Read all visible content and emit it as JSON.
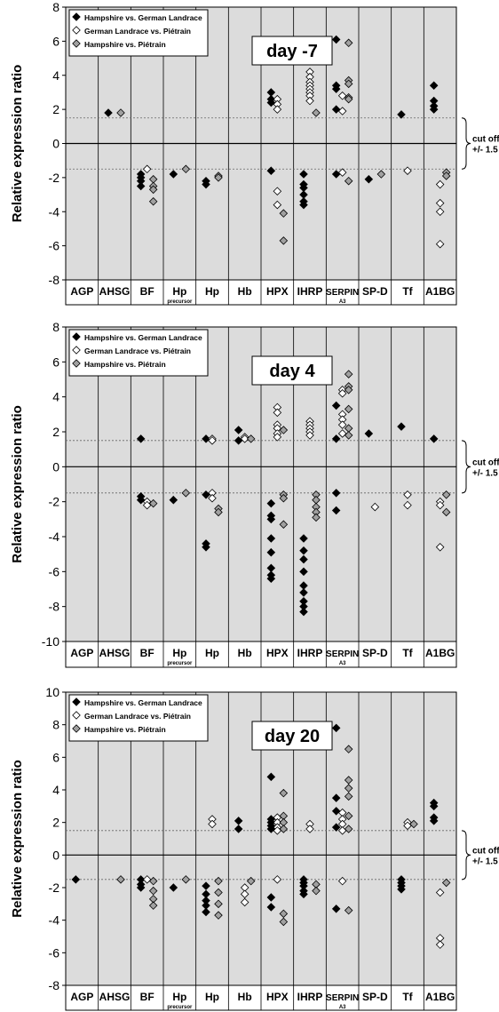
{
  "legend": {
    "items": [
      {
        "label": "Hampshire vs. German Landrace",
        "marker": "black-diamond"
      },
      {
        "label": "German Landrace vs. Piétrain",
        "marker": "white-diamond"
      },
      {
        "label": "Hampshire vs. Piétrain",
        "marker": "gray-diamond"
      }
    ]
  },
  "cutoff_note": {
    "line1": "cut off",
    "line2": "+/- 1.5"
  },
  "colors": {
    "plot_background": "#dcdcdc",
    "black_marker": "#000000",
    "white_marker": "#ffffff",
    "gray_marker": "#a0a0a0",
    "cutoff_line": "#666666"
  },
  "chart_data": [
    {
      "type": "scatter",
      "title": "day -7",
      "ylabel": "Relative expression ratio",
      "ylim": [
        -8,
        8
      ],
      "yticks": [
        -8,
        -6,
        -4,
        -2,
        0,
        2,
        4,
        6,
        8
      ],
      "cutoff": 1.5,
      "categories": [
        "AGP",
        "AHSG",
        "BF",
        "Hp (precursor)",
        "Hp",
        "Hb",
        "HPX",
        "IHRP",
        "SERPIN A3",
        "SP-D",
        "Tf",
        "A1BG"
      ],
      "series": [
        {
          "name": "Hampshire vs. German Landrace",
          "marker": "black-diamond",
          "points": [
            {
              "cat": "AHSG",
              "values": [
                1.8
              ]
            },
            {
              "cat": "BF",
              "values": [
                -1.8,
                -2.0,
                -2.2,
                -2.5
              ]
            },
            {
              "cat": "Hp (precursor)",
              "values": [
                -1.8
              ]
            },
            {
              "cat": "Hp",
              "values": [
                -2.2,
                -2.4
              ]
            },
            {
              "cat": "HPX",
              "values": [
                3.0,
                2.6,
                2.4,
                -1.6
              ]
            },
            {
              "cat": "IHRP",
              "values": [
                -1.8,
                -2.4,
                -2.6,
                -3.0,
                -3.4,
                -3.6
              ]
            },
            {
              "cat": "SERPIN A3",
              "values": [
                6.1,
                3.4,
                3.2,
                2.0,
                -1.8
              ]
            },
            {
              "cat": "SP-D",
              "values": [
                -2.1
              ]
            },
            {
              "cat": "Tf",
              "values": [
                1.7
              ]
            },
            {
              "cat": "A1BG",
              "values": [
                3.4,
                2.5,
                2.2,
                2.0
              ]
            }
          ]
        },
        {
          "name": "German Landrace vs. Piétrain",
          "marker": "white-diamond",
          "points": [
            {
              "cat": "BF",
              "values": [
                -1.5
              ]
            },
            {
              "cat": "HPX",
              "values": [
                2.6,
                2.3,
                2.0,
                -2.8,
                -3.6
              ]
            },
            {
              "cat": "IHRP",
              "values": [
                4.2,
                3.9,
                3.6,
                3.4,
                3.2,
                3.0,
                2.8,
                2.5
              ]
            },
            {
              "cat": "SERPIN A3",
              "values": [
                2.8,
                1.9,
                -1.7
              ]
            },
            {
              "cat": "Tf",
              "values": [
                -1.6
              ]
            },
            {
              "cat": "A1BG",
              "values": [
                -2.4,
                -3.5,
                -4.0,
                -5.9
              ]
            }
          ]
        },
        {
          "name": "Hampshire vs. Piétrain",
          "marker": "gray-diamond",
          "points": [
            {
              "cat": "AHSG",
              "values": [
                1.8
              ]
            },
            {
              "cat": "BF",
              "values": [
                -2.1,
                -2.5,
                -2.7,
                -3.4
              ]
            },
            {
              "cat": "Hp (precursor)",
              "values": [
                -1.5
              ]
            },
            {
              "cat": "Hp",
              "values": [
                -1.9,
                -2.0
              ]
            },
            {
              "cat": "HPX",
              "values": [
                -4.1,
                -5.7
              ]
            },
            {
              "cat": "IHRP",
              "values": [
                1.8
              ]
            },
            {
              "cat": "SERPIN A3",
              "values": [
                5.9,
                3.7,
                3.5,
                2.7,
                2.6,
                -2.2
              ]
            },
            {
              "cat": "SP-D",
              "values": [
                -1.8
              ]
            },
            {
              "cat": "A1BG",
              "values": [
                -1.7,
                -1.9
              ]
            }
          ]
        }
      ]
    },
    {
      "type": "scatter",
      "title": "day 4",
      "ylabel": "Relative expression ratio",
      "ylim": [
        -10,
        8
      ],
      "yticks": [
        -10,
        -8,
        -6,
        -4,
        -2,
        0,
        2,
        4,
        6,
        8
      ],
      "cutoff": 1.5,
      "categories": [
        "AGP",
        "AHSG",
        "BF",
        "Hp (precursor)",
        "Hp",
        "Hb",
        "HPX",
        "IHRP",
        "SERPIN A3",
        "SP-D",
        "Tf",
        "A1BG"
      ],
      "series": [
        {
          "name": "Hampshire vs. German Landrace",
          "marker": "black-diamond",
          "points": [
            {
              "cat": "BF",
              "values": [
                1.6,
                -1.7,
                -1.9
              ]
            },
            {
              "cat": "Hp (precursor)",
              "values": [
                -1.9
              ]
            },
            {
              "cat": "Hp",
              "values": [
                1.6,
                -1.6,
                -4.4,
                -4.6
              ]
            },
            {
              "cat": "Hb",
              "values": [
                2.1,
                1.5
              ]
            },
            {
              "cat": "HPX",
              "values": [
                -2.1,
                -2.8,
                -3.0,
                -4.1,
                -4.9,
                -5.8,
                -6.2,
                -6.4
              ]
            },
            {
              "cat": "IHRP",
              "values": [
                -4.1,
                -4.8,
                -5.3,
                -6.0,
                -6.8,
                -7.2,
                -7.7,
                -8.0,
                -8.3
              ]
            },
            {
              "cat": "SERPIN A3",
              "values": [
                3.5,
                1.6,
                -1.5,
                -2.5
              ]
            },
            {
              "cat": "SP-D",
              "values": [
                1.9
              ]
            },
            {
              "cat": "Tf",
              "values": [
                2.3
              ]
            },
            {
              "cat": "A1BG",
              "values": [
                1.6
              ]
            }
          ]
        },
        {
          "name": "German Landrace vs. Piétrain",
          "marker": "white-diamond",
          "points": [
            {
              "cat": "BF",
              "values": [
                -2.0,
                -2.2
              ]
            },
            {
              "cat": "Hp",
              "values": [
                1.6,
                1.5,
                -1.5,
                -1.8
              ]
            },
            {
              "cat": "Hb",
              "values": [
                1.7,
                1.6
              ]
            },
            {
              "cat": "HPX",
              "values": [
                3.4,
                3.1,
                2.4,
                2.2,
                1.9,
                1.7
              ]
            },
            {
              "cat": "IHRP",
              "values": [
                2.6,
                2.4,
                2.2,
                2.0,
                1.8
              ]
            },
            {
              "cat": "SERPIN A3",
              "values": [
                4.4,
                4.2,
                3.0,
                2.7,
                2.4,
                1.9
              ]
            },
            {
              "cat": "SP-D",
              "values": [
                -2.3
              ]
            },
            {
              "cat": "Tf",
              "values": [
                -1.6,
                -2.2
              ]
            },
            {
              "cat": "A1BG",
              "values": [
                -2.0,
                -2.2,
                -4.6
              ]
            }
          ]
        },
        {
          "name": "Hampshire vs. Piétrain",
          "marker": "gray-diamond",
          "points": [
            {
              "cat": "BF",
              "values": [
                -2.1
              ]
            },
            {
              "cat": "Hp (precursor)",
              "values": [
                -1.5
              ]
            },
            {
              "cat": "Hp",
              "values": [
                -2.4,
                -2.6
              ]
            },
            {
              "cat": "Hb",
              "values": [
                1.6
              ]
            },
            {
              "cat": "HPX",
              "values": [
                2.1,
                -1.6,
                -1.8,
                -3.3
              ]
            },
            {
              "cat": "IHRP",
              "values": [
                -1.6,
                -1.9,
                -2.3,
                -2.6,
                -2.9
              ]
            },
            {
              "cat": "SERPIN A3",
              "values": [
                5.3,
                4.6,
                4.4,
                3.3,
                2.2,
                1.8
              ]
            },
            {
              "cat": "A1BG",
              "values": [
                -1.6,
                -2.6
              ]
            }
          ]
        }
      ]
    },
    {
      "type": "scatter",
      "title": "day 20",
      "ylabel": "Relative expression ratio",
      "ylim": [
        -8,
        10
      ],
      "yticks": [
        -8,
        -6,
        -4,
        -2,
        0,
        2,
        4,
        6,
        8,
        10
      ],
      "cutoff": 1.5,
      "categories": [
        "AGP",
        "AHSG",
        "BF",
        "Hp (precursor)",
        "Hp",
        "Hb",
        "HPX",
        "IHRP",
        "SERPIN A3",
        "SP-D",
        "Tf",
        "A1BG"
      ],
      "series": [
        {
          "name": "Hampshire vs. German Landrace",
          "marker": "black-diamond",
          "points": [
            {
              "cat": "AGP",
              "values": [
                -1.5
              ]
            },
            {
              "cat": "BF",
              "values": [
                -1.5,
                -1.8,
                -2.0
              ]
            },
            {
              "cat": "Hp (precursor)",
              "values": [
                -2.0
              ]
            },
            {
              "cat": "Hp",
              "values": [
                -1.9,
                -2.4,
                -2.8,
                -3.1,
                -3.5
              ]
            },
            {
              "cat": "Hb",
              "values": [
                2.1,
                1.6
              ]
            },
            {
              "cat": "HPX",
              "values": [
                4.8,
                2.2,
                2.0,
                1.8,
                1.6,
                -2.6,
                -3.2
              ]
            },
            {
              "cat": "IHRP",
              "values": [
                -1.5,
                -1.7,
                -1.9,
                -2.2,
                -2.4
              ]
            },
            {
              "cat": "SERPIN A3",
              "values": [
                7.8,
                3.5,
                2.7,
                1.7,
                -3.3
              ]
            },
            {
              "cat": "Tf",
              "values": [
                -1.5,
                -1.7,
                -1.9,
                -2.1
              ]
            },
            {
              "cat": "A1BG",
              "values": [
                3.2,
                3.0,
                2.3,
                2.1
              ]
            }
          ]
        },
        {
          "name": "German Landrace vs. Piétrain",
          "marker": "white-diamond",
          "points": [
            {
              "cat": "BF",
              "values": [
                -1.5
              ]
            },
            {
              "cat": "Hp",
              "values": [
                2.2,
                1.9
              ]
            },
            {
              "cat": "Hb",
              "values": [
                -2.0,
                -2.4,
                -2.9
              ]
            },
            {
              "cat": "HPX",
              "values": [
                2.3,
                2.0,
                1.7,
                1.5,
                -1.5
              ]
            },
            {
              "cat": "IHRP",
              "values": [
                1.9,
                1.6
              ]
            },
            {
              "cat": "SERPIN A3",
              "values": [
                2.6,
                2.2,
                1.9,
                1.5,
                -1.6
              ]
            },
            {
              "cat": "Tf",
              "values": [
                2.0,
                1.8
              ]
            },
            {
              "cat": "A1BG",
              "values": [
                -2.3,
                -5.1,
                -5.5
              ]
            }
          ]
        },
        {
          "name": "Hampshire vs. Piétrain",
          "marker": "gray-diamond",
          "points": [
            {
              "cat": "AHSG",
              "values": [
                -1.5
              ]
            },
            {
              "cat": "BF",
              "values": [
                -1.6,
                -2.2,
                -2.7,
                -3.1
              ]
            },
            {
              "cat": "Hp (precursor)",
              "values": [
                -1.5
              ]
            },
            {
              "cat": "Hp",
              "values": [
                -1.6,
                -2.3,
                -3.0,
                -3.7
              ]
            },
            {
              "cat": "Hb",
              "values": [
                -1.6
              ]
            },
            {
              "cat": "HPX",
              "values": [
                3.8,
                2.4,
                2.0,
                1.6,
                -3.6,
                -4.1
              ]
            },
            {
              "cat": "IHRP",
              "values": [
                -1.8,
                -2.2
              ]
            },
            {
              "cat": "SERPIN A3",
              "values": [
                6.5,
                4.6,
                4.1,
                3.6,
                2.4,
                1.6,
                -3.4
              ]
            },
            {
              "cat": "Tf",
              "values": [
                1.9
              ]
            },
            {
              "cat": "A1BG",
              "values": [
                -1.7
              ]
            }
          ]
        }
      ]
    }
  ]
}
